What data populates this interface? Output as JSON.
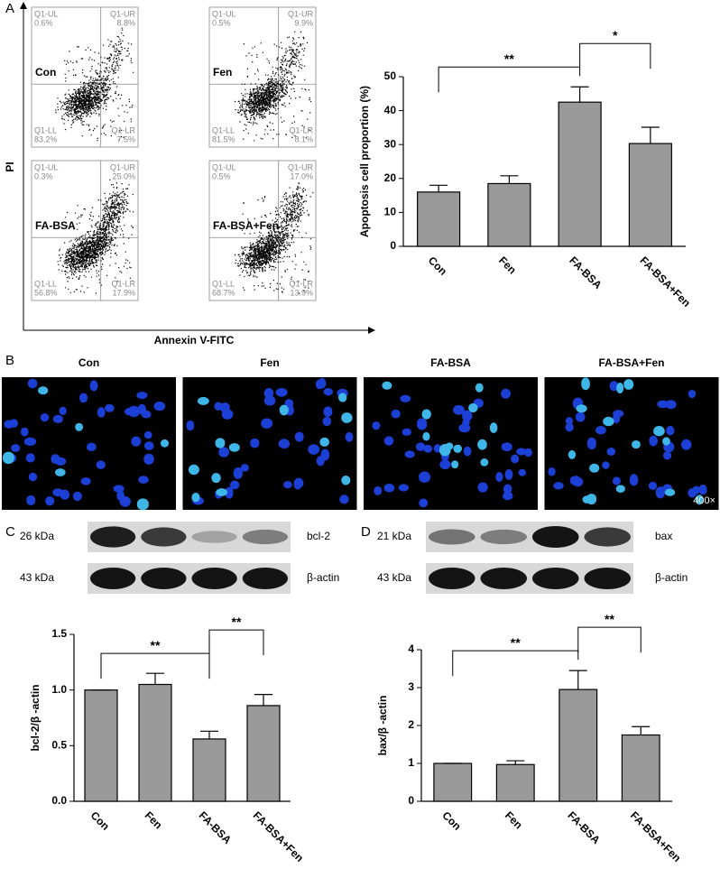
{
  "panel_labels": [
    "A",
    "B",
    "C",
    "D"
  ],
  "flow": {
    "y_label": "PI",
    "x_label": "Annexin V-FITC",
    "plots": [
      {
        "name": "Con",
        "quadrants": [
          {
            "name": "Q1-UL",
            "pct": "0.6%"
          },
          {
            "name": "Q1-UR",
            "pct": "8.8%"
          },
          {
            "name": "Q1-LL",
            "pct": "83.2%"
          },
          {
            "name": "Q1-LR",
            "pct": "7.5%"
          }
        ]
      },
      {
        "name": "Fen",
        "quadrants": [
          {
            "name": "Q1-UL",
            "pct": "0.5%"
          },
          {
            "name": "Q1-UR",
            "pct": "9.9%"
          },
          {
            "name": "Q1-LL",
            "pct": "81.5%"
          },
          {
            "name": "Q1-LR",
            "pct": "8.1%"
          }
        ]
      },
      {
        "name": "FA-BSA",
        "quadrants": [
          {
            "name": "Q1-UL",
            "pct": "0.3%"
          },
          {
            "name": "Q1-UR",
            "pct": "25.0%"
          },
          {
            "name": "Q1-LL",
            "pct": "56.8%"
          },
          {
            "name": "Q1-LR",
            "pct": "17.9%"
          }
        ]
      },
      {
        "name": "FA-BSA+Fen",
        "quadrants": [
          {
            "name": "Q1-UL",
            "pct": "0.5%"
          },
          {
            "name": "Q1-UR",
            "pct": "17.0%"
          },
          {
            "name": "Q1-LL",
            "pct": "68.7%"
          },
          {
            "name": "Q1-LR",
            "pct": "13.9%"
          }
        ]
      }
    ]
  },
  "microscopy": {
    "titles": [
      "Con",
      "Fen",
      "FA-BSA",
      "FA-BSA+Fen"
    ],
    "magnification": "400×"
  },
  "blots": [
    {
      "rows": [
        {
          "size": "26 kDa",
          "protein": "bcl-2"
        },
        {
          "size": "43 kDa",
          "protein": "β-actin"
        }
      ]
    },
    {
      "rows": [
        {
          "size": "21 kDa",
          "protein": "bax"
        },
        {
          "size": "43 kDa",
          "protein": "β-actin"
        }
      ]
    }
  ],
  "chart_data": [
    {
      "type": "bar",
      "y_label": "Apoptosis cell proportion (%)",
      "color": "#999999",
      "categories": [
        "Con",
        "Fen",
        "FA-BSA",
        "FA-BSA+Fen"
      ],
      "values": [
        16,
        18.5,
        42.5,
        30.3
      ],
      "errors": [
        2,
        2.3,
        4.5,
        4.8
      ],
      "ylim": [
        0,
        50
      ],
      "yticks": [
        0,
        10,
        20,
        30,
        40,
        50
      ],
      "annotations": [
        {
          "text": "**",
          "between": [
            "Con",
            "FA-BSA"
          ]
        },
        {
          "text": "*",
          "between": [
            "FA-BSA",
            "FA-BSA+Fen"
          ]
        }
      ]
    },
    {
      "type": "bar",
      "y_label": "bcl-2/β -actin",
      "color": "#999999",
      "categories": [
        "Con",
        "Fen",
        "FA-BSA",
        "FA-BSA+Fen"
      ],
      "values": [
        1.0,
        1.05,
        0.56,
        0.86
      ],
      "errors": [
        0,
        0.1,
        0.07,
        0.1
      ],
      "ylim": [
        0,
        1.5
      ],
      "yticks": [
        {
          "value": 0,
          "label": "0.0"
        },
        0.5,
        {
          "value": 1,
          "label": "1.0"
        },
        1.5
      ],
      "annotations": [
        {
          "text": "**",
          "between": [
            "Con",
            "FA-BSA"
          ]
        },
        {
          "text": "**",
          "between": [
            "FA-BSA",
            "FA-BSA+Fen"
          ]
        }
      ]
    },
    {
      "type": "bar",
      "y_label": "bax/β -actin",
      "color": "#999999",
      "categories": [
        "Con",
        "Fen",
        "FA-BSA",
        "FA-BSA+Fen"
      ],
      "values": [
        1.0,
        0.97,
        2.95,
        1.75
      ],
      "errors": [
        0,
        0.1,
        0.5,
        0.22
      ],
      "ylim": [
        0,
        4
      ],
      "yticks": [
        0,
        1,
        2,
        3,
        4
      ],
      "annotations": [
        {
          "text": "**",
          "between": [
            "Con",
            "FA-BSA"
          ]
        },
        {
          "text": "**",
          "between": [
            "FA-BSA",
            "FA-BSA+Fen"
          ]
        }
      ]
    }
  ]
}
